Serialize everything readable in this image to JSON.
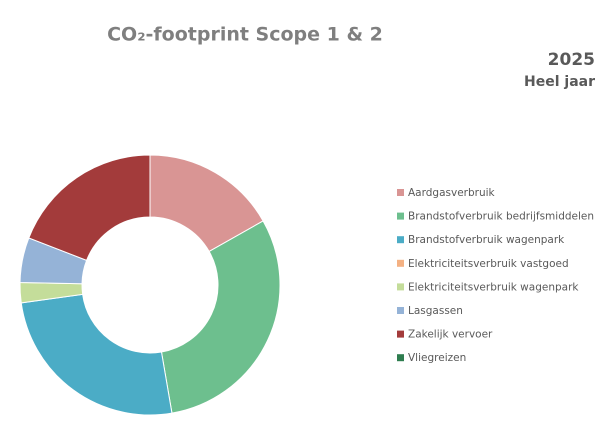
{
  "chart_data": {
    "type": "donut",
    "title": "CO₂-footprint Scope 1 & 2",
    "subtitle": "2025",
    "period": "Heel jaar",
    "categories": [
      "Aardgasverbruik",
      "Brandstofverbruik bedrijfsmiddelen",
      "Brandstofverbruik wagenpark",
      "Elektriciteitsverbruik vastgoed",
      "Elektriciteitsverbruik wagenpark",
      "Lasgassen",
      "Zakelijk vervoer",
      "Vliegreizen"
    ],
    "values": [
      16.8,
      30.5,
      25.5,
      0,
      2.5,
      5.6,
      19.1,
      0
    ],
    "colors": [
      "#d99594",
      "#6dbf8e",
      "#4bacc6",
      "#f4b183",
      "#c4dd9a",
      "#95b3d7",
      "#a33b3b",
      "#2e7d4f"
    ],
    "legend": "right"
  }
}
